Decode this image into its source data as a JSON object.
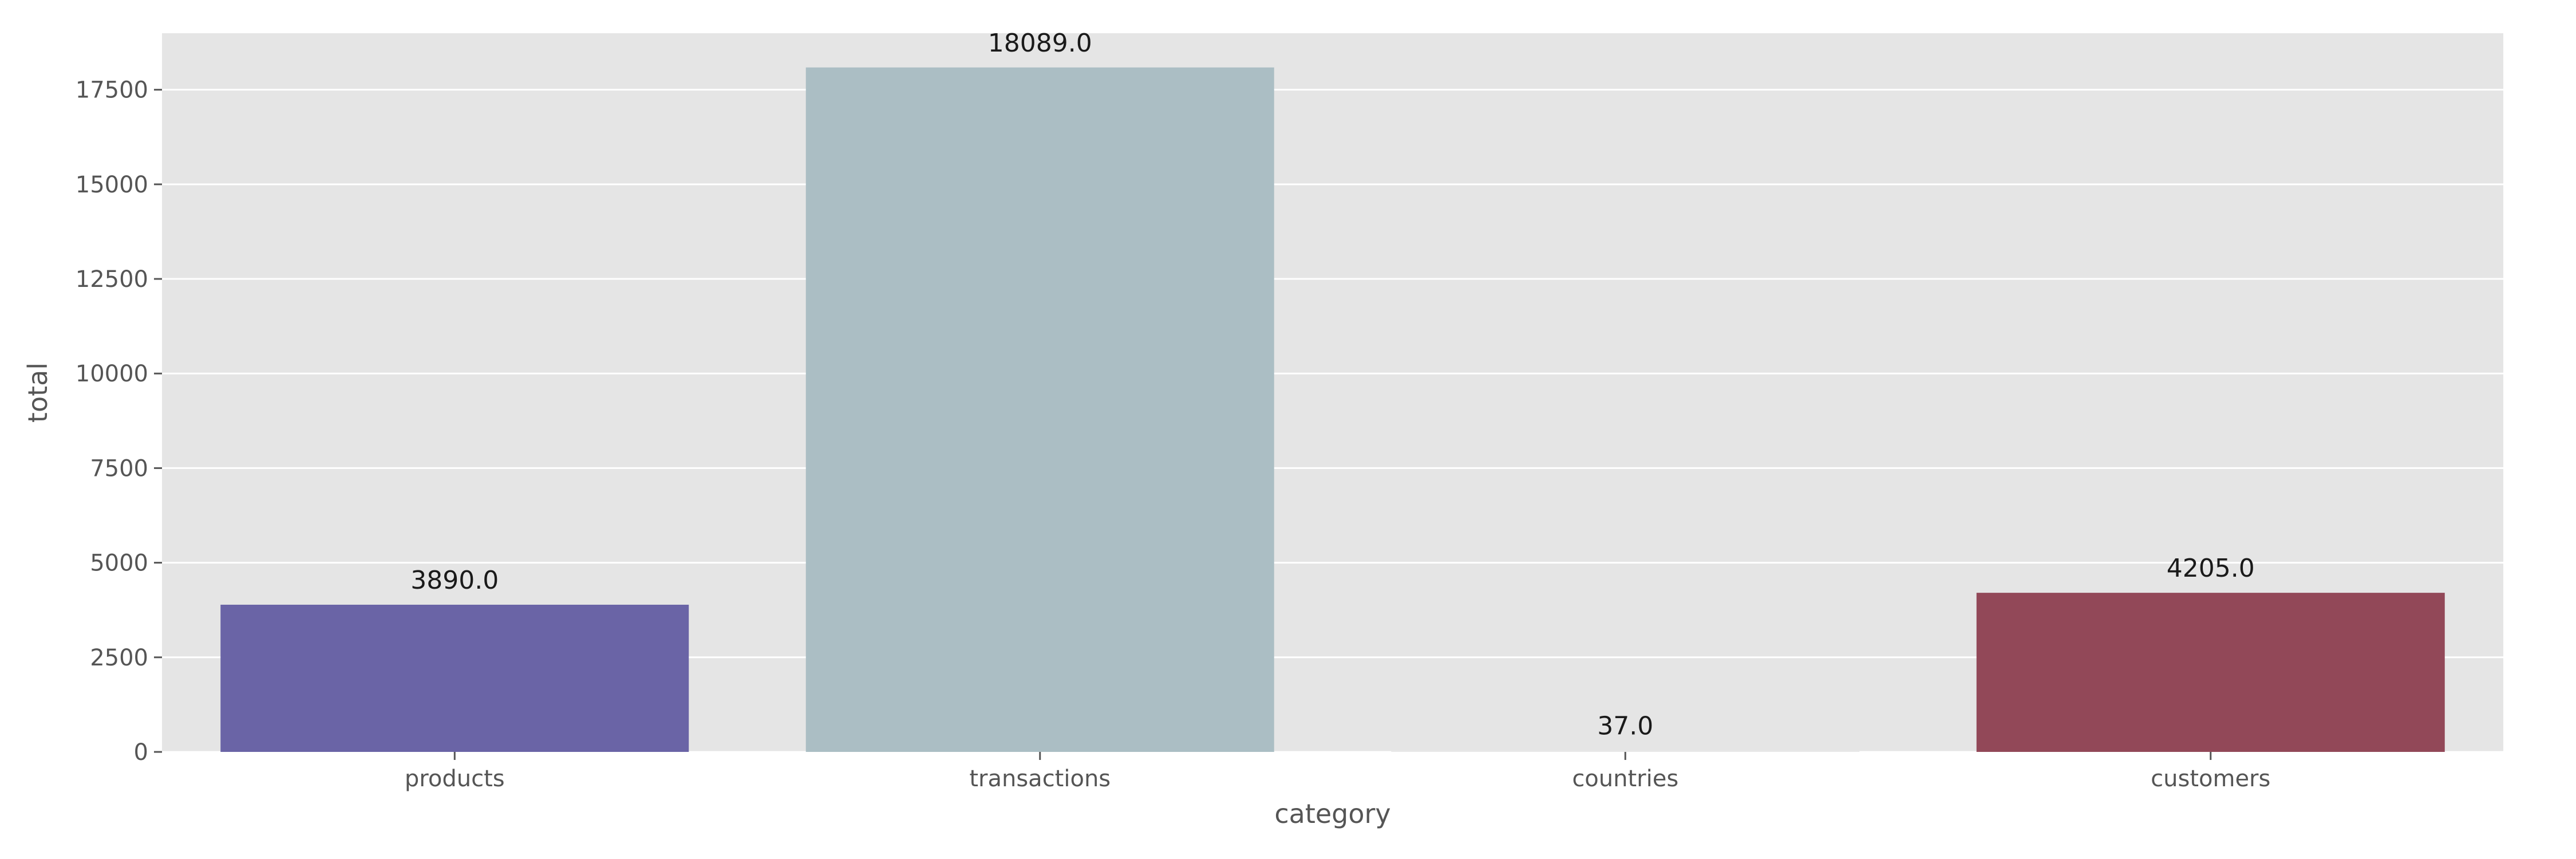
{
  "chart_data": {
    "type": "bar",
    "title": "",
    "xlabel": "category",
    "ylabel": "total",
    "categories": [
      "products",
      "transactions",
      "countries",
      "customers"
    ],
    "values": [
      3890.0,
      18089.0,
      37.0,
      4205.0
    ],
    "data_labels": [
      "3890.0",
      "18089.0",
      "37.0",
      "4205.0"
    ],
    "colors": [
      "#6a64a6",
      "#abbec4",
      "#e8e8e8",
      "#924858"
    ],
    "yticks": [
      0,
      2500,
      5000,
      7500,
      10000,
      12500,
      15000,
      17500
    ],
    "ylim": [
      0,
      18993.45
    ],
    "grid": true,
    "background": "#e5e5e5",
    "gridline_color": "#ffffff"
  }
}
